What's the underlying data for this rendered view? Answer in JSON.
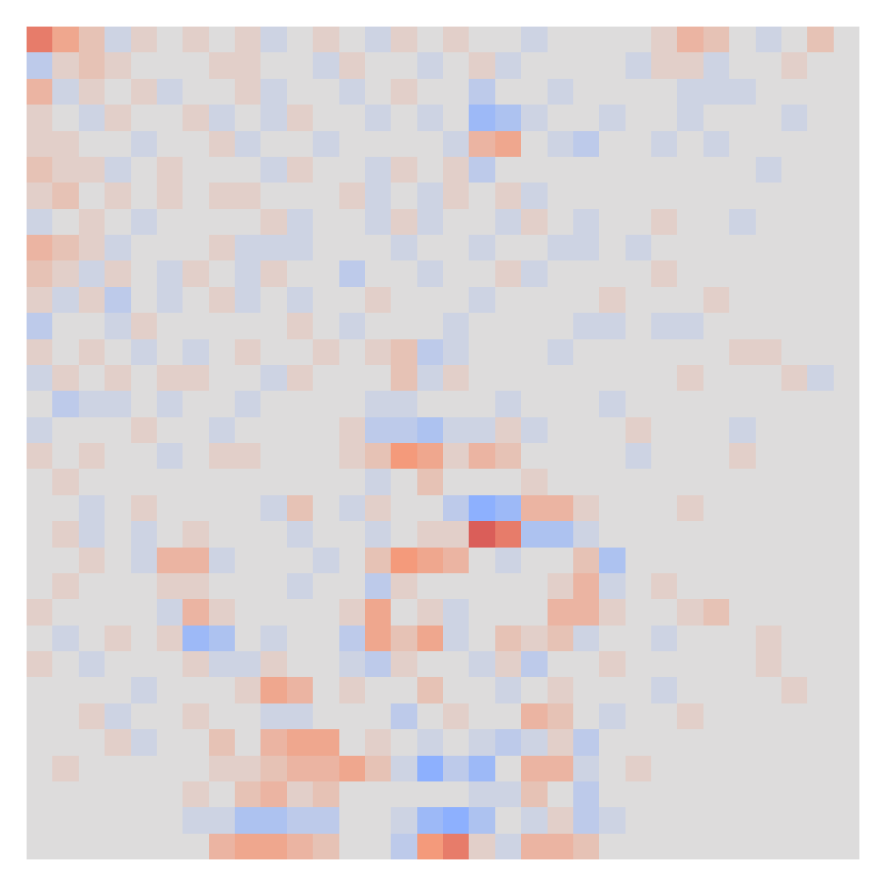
{
  "chart_data": {
    "type": "heatmap",
    "tick_labels": false,
    "zlim": [
      -1,
      1
    ],
    "z": [
      [
        0.6,
        0.4,
        0.2,
        -0.1,
        0.1,
        0,
        0.1,
        0,
        0.1,
        -0.1,
        0,
        0.1,
        0,
        -0.1,
        0.1,
        0,
        0.1,
        0,
        0,
        -0.1,
        0,
        0,
        0,
        0,
        0.1,
        0.3,
        0.2,
        0,
        -0.1,
        0,
        0.2,
        0
      ],
      [
        -0.2,
        0.1,
        0.2,
        0.1,
        0,
        0,
        0,
        0.1,
        0.1,
        0,
        0,
        -0.1,
        0.1,
        0,
        0,
        -0.1,
        0,
        0.1,
        -0.1,
        0,
        0,
        0,
        0,
        -0.1,
        0.1,
        0.1,
        -0.1,
        0,
        0,
        0.1,
        0,
        0
      ],
      [
        0.3,
        -0.1,
        0.1,
        0,
        0.1,
        -0.1,
        0,
        0,
        0.1,
        -0.1,
        0,
        0,
        -0.1,
        0,
        0.1,
        0,
        0,
        -0.2,
        0,
        0,
        -0.1,
        0,
        0,
        0,
        0,
        -0.1,
        -0.1,
        -0.1,
        0,
        0,
        0,
        0
      ],
      [
        0.1,
        0,
        -0.1,
        0.1,
        0,
        0,
        0.1,
        -0.1,
        0,
        -0.1,
        0.1,
        0,
        0,
        -0.1,
        0,
        -0.1,
        0,
        -0.4,
        -0.3,
        -0.1,
        0,
        0,
        -0.1,
        0,
        0,
        -0.1,
        0,
        0,
        0,
        -0.1,
        0,
        0
      ],
      [
        0.1,
        0.1,
        0,
        0,
        -0.1,
        0,
        0,
        0.1,
        -0.1,
        0,
        0,
        -0.1,
        0,
        0,
        0,
        0,
        -0.1,
        0.3,
        0.4,
        0,
        -0.1,
        -0.2,
        0,
        0,
        -0.1,
        0,
        -0.1,
        0,
        0,
        0,
        0,
        0
      ],
      [
        0.2,
        0.1,
        0.1,
        -0.1,
        0,
        0.1,
        0,
        0,
        0,
        -0.1,
        0.1,
        0,
        0,
        -0.1,
        0.1,
        0,
        0.1,
        -0.2,
        0,
        0,
        0,
        0,
        0,
        0,
        0,
        0,
        0,
        0,
        -0.1,
        0,
        0,
        0
      ],
      [
        0.1,
        0.2,
        0,
        0.1,
        0,
        0.1,
        0,
        0.1,
        0.1,
        0,
        0,
        0,
        0.1,
        -0.1,
        0,
        -0.1,
        0.1,
        0,
        0.1,
        -0.1,
        0,
        0,
        0,
        0,
        0,
        0,
        0,
        0,
        0,
        0,
        0,
        0
      ],
      [
        -0.1,
        0,
        0.1,
        0,
        -0.1,
        0,
        0,
        0,
        0,
        0.1,
        -0.1,
        0,
        0,
        -0.1,
        0.1,
        -0.1,
        0,
        0,
        -0.1,
        0.1,
        0,
        -0.1,
        0,
        0,
        0.1,
        0,
        0,
        -0.1,
        0,
        0,
        0,
        0
      ],
      [
        0.3,
        0.2,
        0.1,
        -0.1,
        0,
        0,
        0,
        0.1,
        -0.1,
        -0.1,
        -0.1,
        0,
        0,
        0,
        -0.1,
        0,
        0,
        -0.1,
        0,
        0,
        -0.1,
        -0.1,
        0,
        -0.1,
        0,
        0,
        0,
        0,
        0,
        0,
        0,
        0
      ],
      [
        0.2,
        0.1,
        -0.1,
        0.1,
        0,
        -0.1,
        0.1,
        0,
        -0.1,
        0.1,
        0,
        0,
        -0.2,
        0,
        0,
        -0.1,
        0,
        0,
        0.1,
        -0.1,
        0,
        0,
        0,
        0,
        0.1,
        0,
        0,
        0,
        0,
        0,
        0,
        0
      ],
      [
        0.1,
        -0.1,
        0.1,
        -0.2,
        0,
        -0.1,
        0,
        0.1,
        -0.1,
        0,
        -0.1,
        0,
        0,
        0.1,
        0,
        0,
        0,
        -0.1,
        0,
        0,
        0,
        0,
        0.1,
        0,
        0,
        0,
        0.1,
        0,
        0,
        0,
        0,
        0
      ],
      [
        -0.2,
        0,
        0,
        -0.1,
        0.1,
        0,
        0,
        0,
        0,
        0,
        0.1,
        0,
        -0.1,
        0,
        0,
        0,
        -0.1,
        0,
        0,
        0,
        0,
        -0.1,
        -0.1,
        0,
        -0.1,
        -0.1,
        0,
        0,
        0,
        0,
        0,
        0
      ],
      [
        0.1,
        0,
        0.1,
        0,
        -0.1,
        0,
        -0.1,
        0,
        0.1,
        0,
        0,
        0.1,
        0,
        0.1,
        0.2,
        -0.2,
        -0.1,
        0,
        0,
        0,
        -0.1,
        0,
        0,
        0,
        0,
        0,
        0,
        0.1,
        0.1,
        0,
        0,
        0
      ],
      [
        -0.1,
        0.1,
        0,
        0.1,
        0,
        0.1,
        0.1,
        0,
        0,
        -0.1,
        0.1,
        0,
        0,
        0,
        0.2,
        -0.1,
        0.1,
        0,
        0,
        0,
        0,
        0,
        0,
        0,
        0,
        0.1,
        0,
        0,
        0,
        0.1,
        -0.1,
        0
      ],
      [
        0,
        -0.2,
        -0.1,
        -0.1,
        0,
        -0.1,
        0,
        0,
        -0.1,
        0,
        0,
        0,
        0,
        -0.1,
        -0.1,
        0,
        0,
        0,
        -0.1,
        0,
        0,
        0,
        -0.1,
        0,
        0,
        0,
        0,
        0,
        0,
        0,
        0,
        0
      ],
      [
        -0.1,
        0,
        0,
        0,
        0.1,
        0,
        0,
        -0.1,
        0,
        0,
        0,
        0,
        0.1,
        -0.2,
        -0.2,
        -0.3,
        -0.1,
        -0.1,
        0.1,
        -0.1,
        0,
        0,
        0,
        0.1,
        0,
        0,
        0,
        -0.1,
        0,
        0,
        0,
        0
      ],
      [
        0.1,
        0,
        0.1,
        0,
        0,
        -0.1,
        0,
        0.1,
        0.1,
        0,
        0,
        0,
        0.1,
        0.2,
        0.5,
        0.4,
        0.1,
        0.3,
        0.2,
        0,
        0,
        0,
        0,
        -0.1,
        0,
        0,
        0,
        0.1,
        0,
        0,
        0,
        0
      ],
      [
        0,
        0.1,
        0,
        0,
        0,
        0,
        0,
        0,
        0,
        0,
        0,
        0,
        0,
        -0.1,
        0,
        0.2,
        0,
        0,
        0,
        0.1,
        0,
        0,
        0,
        0,
        0,
        0,
        0,
        0,
        0,
        0,
        0,
        0
      ],
      [
        0,
        0,
        -0.1,
        0,
        0.1,
        0,
        0,
        0,
        0,
        -0.1,
        0.2,
        0,
        -0.1,
        0.1,
        0,
        0,
        -0.2,
        -0.5,
        -0.4,
        0.3,
        0.3,
        0.1,
        0,
        0,
        0,
        0.1,
        0,
        0,
        0,
        0,
        0,
        0
      ],
      [
        0,
        0.1,
        -0.1,
        0,
        -0.1,
        0,
        0.1,
        0,
        0,
        0,
        -0.1,
        0,
        0,
        -0.1,
        0,
        0.1,
        0.1,
        0.7,
        0.6,
        -0.3,
        -0.3,
        -0.1,
        0,
        0,
        0,
        0,
        0,
        0,
        0,
        0,
        0,
        0
      ],
      [
        0,
        0,
        0.1,
        0,
        -0.1,
        0.3,
        0.3,
        -0.1,
        0,
        0,
        0,
        -0.1,
        0,
        0.2,
        0.5,
        0.4,
        0.3,
        0,
        -0.1,
        0,
        0,
        0.2,
        -0.3,
        0,
        0,
        0,
        0,
        0,
        0,
        0,
        0,
        0
      ],
      [
        0,
        0.1,
        0,
        0,
        0,
        0.1,
        0.1,
        0,
        0,
        0,
        -0.1,
        0,
        0,
        -0.2,
        0.1,
        0,
        0,
        0,
        0,
        0,
        0.1,
        0.3,
        -0.1,
        0,
        0.1,
        0,
        0,
        0,
        0,
        0,
        0,
        0
      ],
      [
        0.1,
        0,
        0,
        0,
        0,
        -0.1,
        0.3,
        0.1,
        0,
        0,
        0,
        0,
        0.1,
        0.4,
        0,
        0.1,
        -0.1,
        0,
        0,
        0,
        0.3,
        0.3,
        0.1,
        0,
        0,
        0.1,
        0.2,
        0,
        0,
        0,
        0,
        0
      ],
      [
        0,
        -0.1,
        0,
        0.1,
        0,
        0.1,
        -0.4,
        -0.3,
        0,
        -0.1,
        0,
        0,
        -0.2,
        0.4,
        0.2,
        0.4,
        -0.1,
        0,
        0.2,
        0.1,
        0.2,
        -0.1,
        0,
        0,
        -0.1,
        0,
        0,
        0,
        0.1,
        0,
        0,
        0
      ],
      [
        0.1,
        0,
        -0.1,
        0,
        0,
        0,
        0.1,
        -0.1,
        -0.1,
        0.1,
        0,
        0,
        -0.1,
        -0.2,
        0.1,
        0,
        0,
        -0.1,
        0.1,
        -0.2,
        0,
        0,
        0.1,
        0,
        0,
        0,
        0,
        0,
        0.1,
        0,
        0,
        0
      ],
      [
        0,
        0,
        0,
        0,
        -0.1,
        0,
        0,
        0,
        0.1,
        0.4,
        0.3,
        0,
        0.1,
        0,
        0,
        0.2,
        0,
        0,
        -0.1,
        0,
        0.1,
        0,
        0,
        0,
        -0.1,
        0,
        0,
        0,
        0,
        0.1,
        0,
        0
      ],
      [
        0,
        0,
        0.1,
        -0.1,
        0,
        0,
        0.1,
        0,
        0,
        -0.1,
        -0.1,
        0,
        0,
        0,
        -0.2,
        0,
        0.1,
        0,
        0,
        0.3,
        0.2,
        0,
        -0.1,
        0,
        0,
        0.1,
        0,
        0,
        0,
        0,
        0,
        0
      ],
      [
        0,
        0,
        0,
        0.1,
        -0.1,
        0,
        0,
        0.2,
        0,
        0.3,
        0.4,
        0.4,
        0,
        0.1,
        0,
        -0.1,
        0,
        -0.1,
        -0.2,
        -0.1,
        0.1,
        -0.2,
        0,
        0,
        0,
        0,
        0,
        0,
        0,
        0,
        0,
        0
      ],
      [
        0,
        0.1,
        0,
        0,
        0,
        0,
        0,
        0.1,
        0.1,
        0.2,
        0.3,
        0.3,
        0.4,
        0.2,
        -0.1,
        -0.5,
        -0.2,
        -0.4,
        0,
        0.3,
        0.3,
        -0.1,
        0,
        0.1,
        0,
        0,
        0,
        0,
        0,
        0,
        0,
        0
      ],
      [
        0,
        0,
        0,
        0,
        0,
        0,
        0.1,
        0,
        0.2,
        0.3,
        0.1,
        0.2,
        0,
        0,
        0,
        0,
        0,
        -0.1,
        -0.1,
        0.2,
        0,
        -0.2,
        0,
        0,
        0,
        0,
        0,
        0,
        0,
        0,
        0,
        0
      ],
      [
        0,
        0,
        0,
        0,
        0,
        0,
        -0.1,
        -0.1,
        -0.3,
        -0.3,
        -0.2,
        -0.2,
        0,
        0,
        -0.1,
        -0.4,
        -0.5,
        -0.3,
        0,
        -0.1,
        0.1,
        -0.2,
        -0.1,
        0,
        0,
        0,
        0,
        0,
        0,
        0,
        0,
        0
      ],
      [
        0,
        0,
        0,
        0,
        0,
        0,
        0,
        0.3,
        0.4,
        0.4,
        0.3,
        0.2,
        0,
        0,
        -0.2,
        0.5,
        0.6,
        0.1,
        -0.1,
        0.3,
        0.3,
        0.2,
        0,
        0,
        0,
        0,
        0,
        0,
        0,
        0,
        0,
        0
      ]
    ]
  }
}
